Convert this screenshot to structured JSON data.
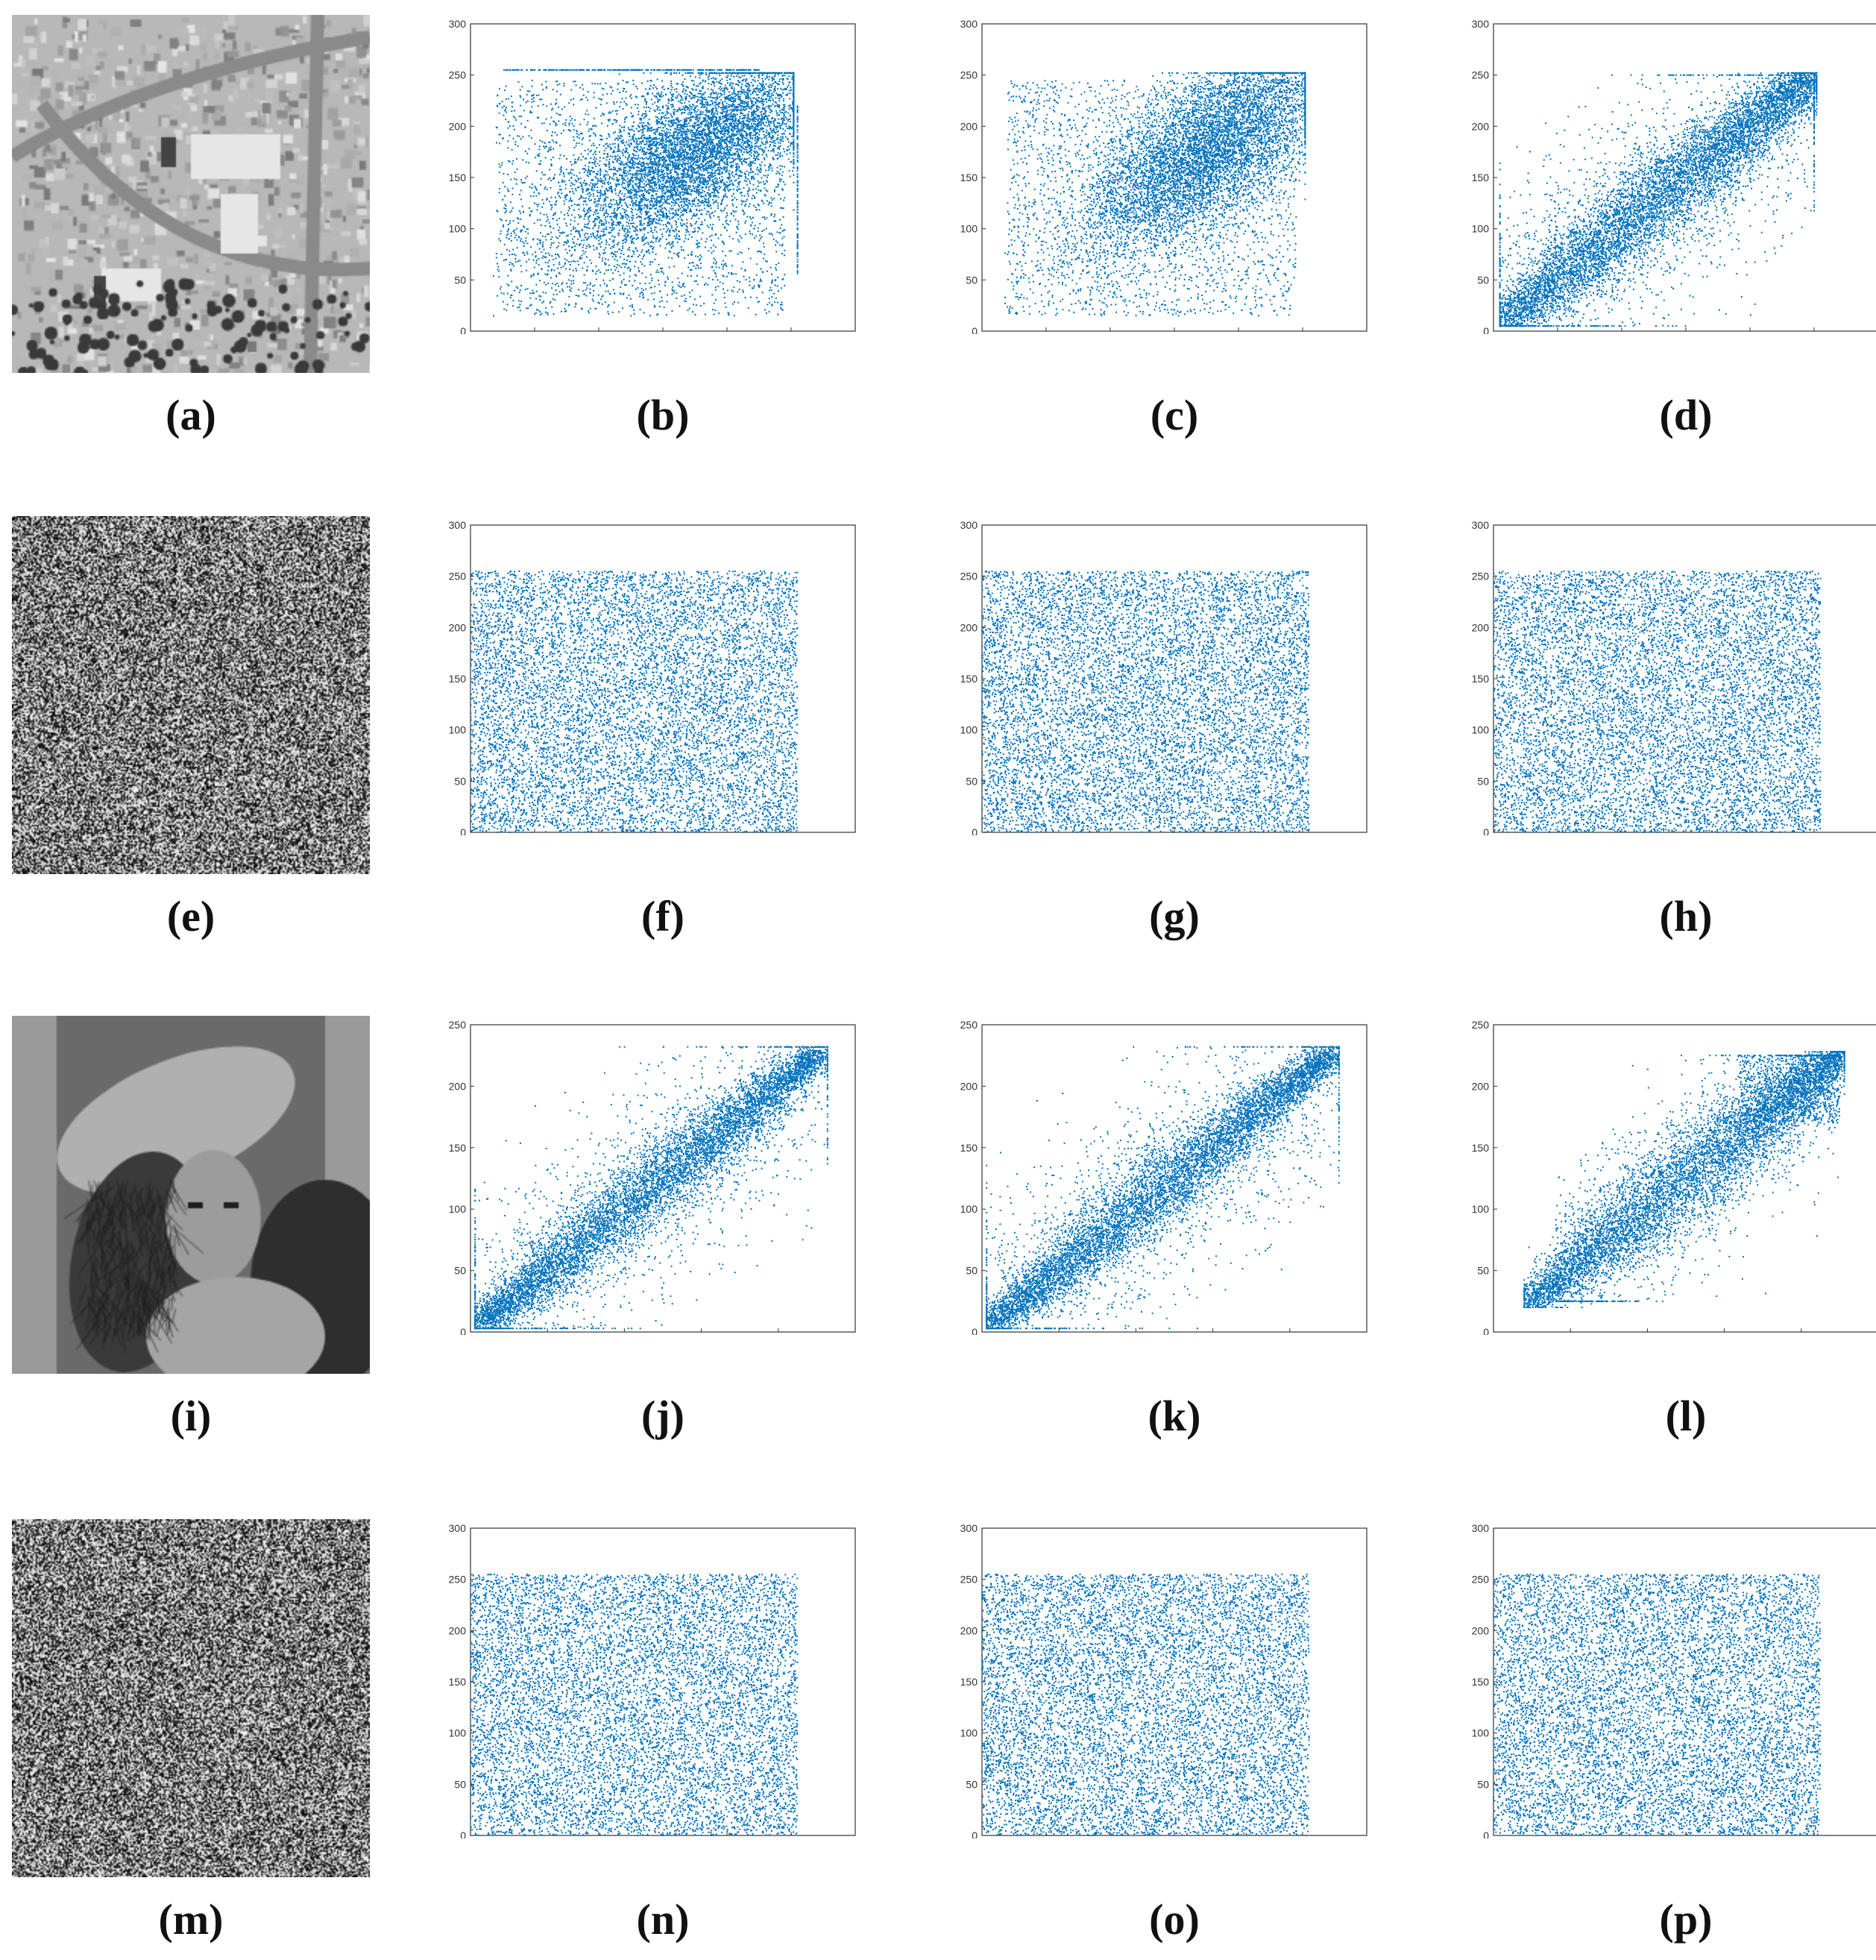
{
  "panels": [
    {
      "label": "a",
      "kind": "image",
      "image": "aerial-photo"
    },
    {
      "label": "b",
      "kind": "scatter",
      "chart": 0
    },
    {
      "label": "c",
      "kind": "scatter",
      "chart": 1
    },
    {
      "label": "d",
      "kind": "scatter",
      "chart": 2
    },
    {
      "label": "e",
      "kind": "image",
      "image": "noise"
    },
    {
      "label": "f",
      "kind": "scatter",
      "chart": 3
    },
    {
      "label": "g",
      "kind": "scatter",
      "chart": 4
    },
    {
      "label": "h",
      "kind": "scatter",
      "chart": 5
    },
    {
      "label": "i",
      "kind": "image",
      "image": "portrait-photo"
    },
    {
      "label": "j",
      "kind": "scatter",
      "chart": 6
    },
    {
      "label": "k",
      "kind": "scatter",
      "chart": 7
    },
    {
      "label": "l",
      "kind": "scatter",
      "chart": 8
    },
    {
      "label": "m",
      "kind": "image",
      "image": "noise"
    },
    {
      "label": "n",
      "kind": "scatter",
      "chart": 9
    },
    {
      "label": "o",
      "kind": "scatter",
      "chart": 10
    },
    {
      "label": "p",
      "kind": "scatter",
      "chart": 11
    }
  ],
  "captions": {
    "a": "(a)",
    "b": "(b)",
    "c": "(c)",
    "d": "(d)",
    "e": "(e)",
    "f": "(f)",
    "g": "(g)",
    "h": "(h)",
    "i": "(i)",
    "j": "(j)",
    "k": "(k)",
    "l": "(l)",
    "m": "(m)",
    "n": "(n)",
    "o": "(o)",
    "p": "(p)"
  },
  "point_color": "#0072bd",
  "chart_data": [
    {
      "type": "scatter",
      "panel": "b",
      "xlim": [
        0,
        300
      ],
      "ylim": [
        0,
        300
      ],
      "xticks": [
        0,
        50,
        100,
        150,
        200,
        250,
        300
      ],
      "yticks": [
        0,
        50,
        100,
        150,
        200,
        250,
        300
      ],
      "xlabel": "",
      "ylabel": "",
      "distribution": "correlated, centered near (175,175), with saturation lines at y=255 and x=255"
    },
    {
      "type": "scatter",
      "panel": "c",
      "xlim": [
        0,
        300
      ],
      "ylim": [
        0,
        300
      ],
      "xticks": [
        0,
        50,
        100,
        150,
        200,
        250,
        300
      ],
      "yticks": [
        0,
        50,
        100,
        150,
        200,
        250,
        300
      ],
      "xlabel": "",
      "ylabel": "",
      "distribution": "correlated, centered near (175,175)"
    },
    {
      "type": "scatter",
      "panel": "d",
      "xlim": [
        0,
        300
      ],
      "ylim": [
        0,
        300
      ],
      "xticks": [
        0,
        50,
        100,
        150,
        200,
        250,
        300
      ],
      "yticks": [
        0,
        50,
        100,
        150,
        200,
        250,
        300
      ],
      "xlabel": "",
      "ylabel": "",
      "distribution": "strongly correlated along y=x, from 5 to 250"
    },
    {
      "type": "scatter",
      "panel": "f",
      "xlim": [
        0,
        300
      ],
      "ylim": [
        0,
        300
      ],
      "xticks": [
        0,
        50,
        100,
        150,
        200,
        250,
        300
      ],
      "yticks": [
        0,
        50,
        100,
        150,
        200,
        250,
        300
      ],
      "xlabel": "",
      "ylabel": "",
      "distribution": "uniform over [0,255]x[0,255]"
    },
    {
      "type": "scatter",
      "panel": "g",
      "xlim": [
        0,
        300
      ],
      "ylim": [
        0,
        300
      ],
      "xticks": [
        0,
        50,
        100,
        150,
        200,
        250,
        300
      ],
      "yticks": [
        0,
        50,
        100,
        150,
        200,
        250,
        300
      ],
      "xlabel": "",
      "ylabel": "",
      "distribution": "uniform over [0,255]x[0,255]"
    },
    {
      "type": "scatter",
      "panel": "h",
      "xlim": [
        0,
        300
      ],
      "ylim": [
        0,
        300
      ],
      "xticks": [
        0,
        50,
        100,
        150,
        200,
        250,
        300
      ],
      "yticks": [
        0,
        50,
        100,
        150,
        200,
        250,
        300
      ],
      "xlabel": "",
      "ylabel": "",
      "distribution": "uniform over [0,255]x[0,255]"
    },
    {
      "type": "scatter",
      "panel": "j",
      "xlim": [
        0,
        250
      ],
      "ylim": [
        0,
        250
      ],
      "xticks": [
        0,
        50,
        100,
        150,
        200,
        250
      ],
      "yticks": [
        0,
        50,
        100,
        150,
        200,
        250
      ],
      "xlabel": "",
      "ylabel": "",
      "distribution": "strongly correlated along y=x, from 5 to 230"
    },
    {
      "type": "scatter",
      "panel": "k",
      "xlim": [
        0,
        250
      ],
      "ylim": [
        0,
        250
      ],
      "xticks": [
        0,
        50,
        100,
        150,
        200,
        250
      ],
      "yticks": [
        0,
        50,
        100,
        150,
        200,
        250
      ],
      "xlabel": "",
      "ylabel": "",
      "distribution": "strongly correlated along y=x, from 3 to 230"
    },
    {
      "type": "scatter",
      "panel": "l",
      "xlim": [
        0,
        250
      ],
      "ylim": [
        0,
        250
      ],
      "xticks": [
        0,
        50,
        100,
        150,
        200,
        250
      ],
      "yticks": [
        0,
        50,
        100,
        150,
        200,
        250
      ],
      "xlabel": "",
      "ylabel": "",
      "distribution": "correlated along y=x, from 22 to 228"
    },
    {
      "type": "scatter",
      "panel": "n",
      "xlim": [
        0,
        300
      ],
      "ylim": [
        0,
        300
      ],
      "xticks": [
        0,
        50,
        100,
        150,
        200,
        250,
        300
      ],
      "yticks": [
        0,
        50,
        100,
        150,
        200,
        250,
        300
      ],
      "xlabel": "",
      "ylabel": "",
      "distribution": "uniform over [0,255]x[0,255]"
    },
    {
      "type": "scatter",
      "panel": "o",
      "xlim": [
        0,
        300
      ],
      "ylim": [
        0,
        300
      ],
      "xticks": [
        0,
        50,
        100,
        150,
        200,
        250,
        300
      ],
      "yticks": [
        0,
        50,
        100,
        150,
        200,
        250,
        300
      ],
      "xlabel": "",
      "ylabel": "",
      "distribution": "uniform over [0,255]x[0,255]"
    },
    {
      "type": "scatter",
      "panel": "p",
      "xlim": [
        0,
        300
      ],
      "ylim": [
        0,
        300
      ],
      "xticks": [
        0,
        50,
        100,
        150,
        200,
        250,
        300
      ],
      "yticks": [
        0,
        50,
        100,
        150,
        200,
        250,
        300
      ],
      "xlabel": "",
      "ylabel": "",
      "distribution": "uniform over [0,255]x[0,255]"
    }
  ]
}
